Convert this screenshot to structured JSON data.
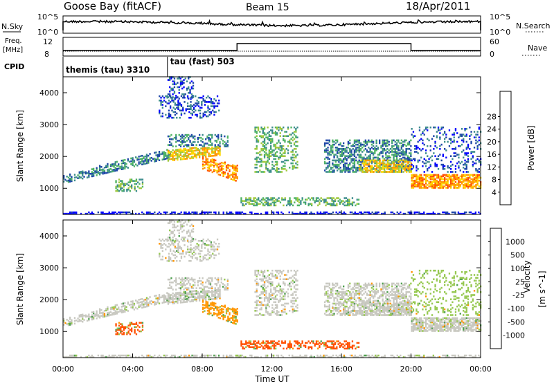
{
  "header": {
    "station": "Goose Bay (fitACF)",
    "beam": "Beam 15",
    "date": "18/Apr/2011"
  },
  "summary_panels": {
    "nsky_label": "N.Sky",
    "nsky_ticks": [
      "10^5",
      "10^0"
    ],
    "nsearch_label": "N.Search",
    "nsearch_ticks": [
      "10^5",
      "10^0"
    ],
    "freq_label": "Freq.",
    "freq_unit": "[MHz]",
    "freq_ticks": [
      "12",
      "8"
    ],
    "nave_label": "Nave",
    "nave_ticks": [
      "60",
      "0"
    ],
    "cpid_label": "CPID",
    "cpid_modes": [
      {
        "name": "themis (tau) 3310",
        "start_h": 0,
        "end_h": 6
      },
      {
        "name": "tau (fast) 503",
        "start_h": 6,
        "end_h": 24
      }
    ]
  },
  "chart_data": [
    {
      "type": "heatmap",
      "title": "",
      "ylabel": "Slant Range [km]",
      "xlabel": "",
      "xlim": [
        0,
        24
      ],
      "ylim": [
        180,
        4500
      ],
      "yticks": [
        "1000",
        "2000",
        "3000",
        "4000"
      ],
      "colorbar": {
        "label": "Power [dB]",
        "ticks": [
          "4",
          "8",
          "12",
          "16",
          "20",
          "24",
          "28"
        ],
        "colors": [
          "#0000ff",
          "#1e46a8",
          "#3c8c8c",
          "#50b464",
          "#a0c83c",
          "#ffd700",
          "#ff9600",
          "#ff5000",
          "#ff0000"
        ]
      }
    },
    {
      "type": "heatmap",
      "title": "",
      "ylabel": "Slant Range [km]",
      "xlabel": "Time UT",
      "xlim": [
        0,
        24
      ],
      "ylim": [
        180,
        4500
      ],
      "yticks": [
        "1000",
        "2000",
        "3000",
        "4000"
      ],
      "xticks": [
        "00:00",
        "04:00",
        "08:00",
        "12:00",
        "16:00",
        "20:00",
        "00:00"
      ],
      "colorbar": {
        "label": "Velocity",
        "unit": "[m s^-1]",
        "ticks": [
          "1000",
          "500",
          "100",
          "25",
          "-25",
          "-100",
          "-500",
          "-1000"
        ],
        "colors": [
          "#1e2896",
          "#3c78c8",
          "#50a050",
          "#96c850",
          "#c8c8c0",
          "#f0c832",
          "#ff9600",
          "#ff5000",
          "#e60000"
        ]
      }
    }
  ]
}
